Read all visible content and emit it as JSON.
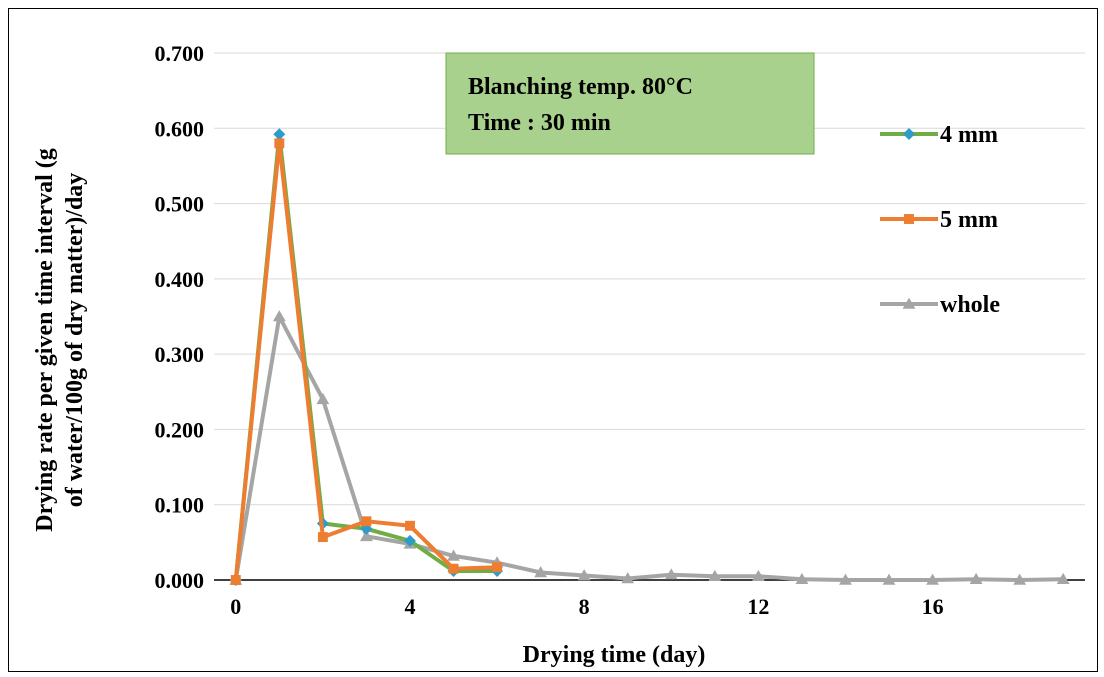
{
  "chart_data": {
    "type": "line",
    "title": "",
    "xlabel": "Drying time (day)",
    "ylabel_lines": [
      "Drying rate per given time interval (g",
      "of water/100g of dry matter)/day"
    ],
    "xlim": [
      -0.5,
      19.5
    ],
    "ylim": [
      0,
      0.7
    ],
    "xticks": [
      0,
      4,
      8,
      12,
      16
    ],
    "yticks": [
      0,
      0.1,
      0.2,
      0.3,
      0.4,
      0.5,
      0.6,
      0.7
    ],
    "ytick_labels": [
      "0.000",
      "0.100",
      "0.200",
      "0.300",
      "0.400",
      "0.500",
      "0.600",
      "0.700"
    ],
    "grid": "horizontal",
    "legend_position": "right",
    "annotation": {
      "lines": [
        "Blanching temp. 80°C",
        "Time : 30 min"
      ],
      "fill": "#a9d18e",
      "border": "#70ad47"
    },
    "series": [
      {
        "name": "4 mm",
        "color": "#70ad47",
        "marker": "diamond",
        "marker_color": "#2e9cca",
        "x": [
          0,
          1,
          2,
          3,
          4,
          5,
          6
        ],
        "y": [
          0.0,
          0.592,
          0.075,
          0.068,
          0.052,
          0.012,
          0.012
        ]
      },
      {
        "name": "5 mm",
        "color": "#ed7d31",
        "marker": "square",
        "marker_color": "#ed7d31",
        "x": [
          0,
          1,
          2,
          3,
          4,
          5,
          6
        ],
        "y": [
          0.0,
          0.58,
          0.057,
          0.078,
          0.072,
          0.015,
          0.017
        ]
      },
      {
        "name": "whole",
        "color": "#a5a5a5",
        "marker": "triangle",
        "marker_color": "#a5a5a5",
        "x": [
          0,
          1,
          2,
          3,
          4,
          5,
          6,
          7,
          8,
          9,
          10,
          11,
          12,
          13,
          14,
          15,
          16,
          17,
          18,
          19
        ],
        "y": [
          0.0,
          0.35,
          0.24,
          0.058,
          0.048,
          0.032,
          0.023,
          0.01,
          0.006,
          0.002,
          0.007,
          0.005,
          0.005,
          0.001,
          0.0,
          0.0,
          0.0,
          0.001,
          0.0,
          0.001
        ]
      }
    ]
  }
}
